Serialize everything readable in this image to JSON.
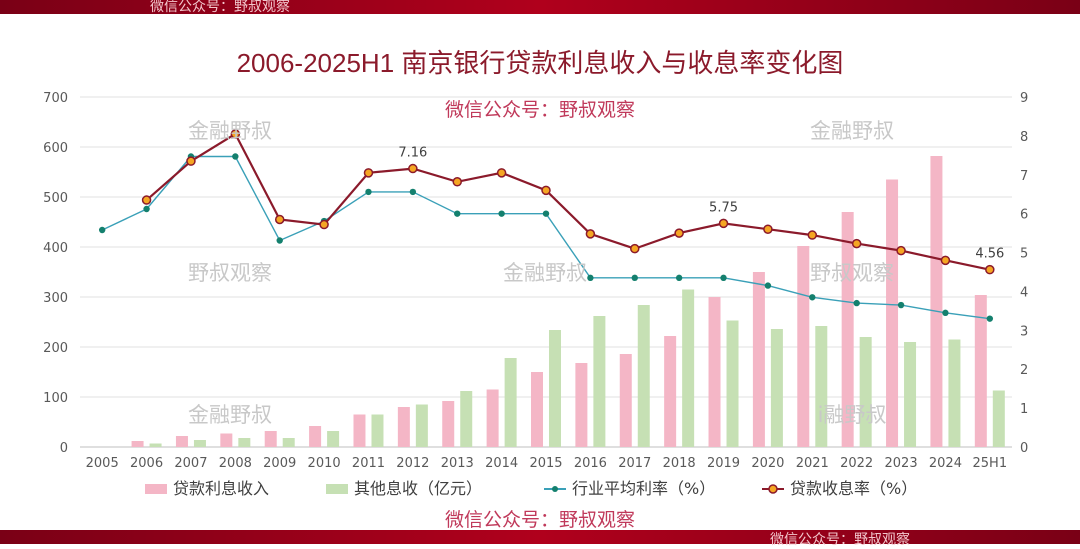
{
  "chart_data": {
    "type": "bar+line",
    "title": "2006-2025H1 南京银行贷款利息收入与收息率变化图",
    "categories": [
      "2005",
      "2006",
      "2007",
      "2008",
      "2009",
      "2010",
      "2011",
      "2012",
      "2013",
      "2014",
      "2015",
      "2016",
      "2017",
      "2018",
      "2019",
      "2020",
      "2021",
      "2022",
      "2023",
      "2024",
      "25H1"
    ],
    "y_left": {
      "ticks": [
        "0",
        "100",
        "200",
        "300",
        "400",
        "500",
        "600",
        "700"
      ],
      "ylim": [
        0,
        700
      ]
    },
    "y_right": {
      "ticks": [
        "0",
        "1",
        "2",
        "3",
        "4",
        "5",
        "6",
        "7",
        "8",
        "9"
      ],
      "ylim": [
        0,
        9
      ]
    },
    "series": [
      {
        "name": "贷款利息收入",
        "type": "bar",
        "axis": "left",
        "color": "#f4b6c6",
        "values": [
          0,
          12,
          22,
          27,
          32,
          42,
          65,
          80,
          92,
          115,
          150,
          168,
          186,
          222,
          300,
          350,
          402,
          470,
          535,
          582,
          304
        ]
      },
      {
        "name": "其他息收（亿元）",
        "type": "bar",
        "axis": "left",
        "color": "#c6e0b4",
        "values": [
          0,
          7,
          14,
          18,
          18,
          32,
          65,
          85,
          112,
          178,
          234,
          262,
          284,
          315,
          253,
          236,
          242,
          220,
          210,
          215,
          113
        ]
      },
      {
        "name": "行业平均利率（%）",
        "type": "line",
        "axis": "right",
        "color": "#3aa0b8",
        "marker": "#14806e",
        "values": [
          5.58,
          6.12,
          7.47,
          7.47,
          5.31,
          5.81,
          6.56,
          6.56,
          6.0,
          6.0,
          6.0,
          4.35,
          4.35,
          4.35,
          4.35,
          4.15,
          3.85,
          3.7,
          3.65,
          3.45,
          3.3
        ]
      },
      {
        "name": "贷款收息率（%）",
        "type": "line",
        "axis": "right",
        "color": "#8b1a2b",
        "marker": "#f5a623",
        "values": [
          null,
          6.35,
          7.35,
          8.05,
          5.85,
          5.72,
          7.05,
          7.16,
          6.82,
          7.05,
          6.6,
          5.48,
          5.1,
          5.5,
          5.75,
          5.6,
          5.45,
          5.23,
          5.05,
          4.8,
          4.56
        ]
      }
    ],
    "data_labels": [
      {
        "series": "贷款收息率（%）",
        "category": "2012",
        "text": "7.16"
      },
      {
        "series": "贷款收息率（%）",
        "category": "2019",
        "text": "5.75"
      },
      {
        "series": "贷款收息率（%）",
        "category": "25H1",
        "text": "4.56"
      }
    ],
    "legend_position": "bottom",
    "grid": true
  },
  "watermarks": {
    "account": "微信公众号：野叔观察",
    "brand": "金融野叔",
    "brand2": "野叔观察",
    "partial1": "野叔观察",
    "partial2": "i融野叔"
  },
  "colors": {
    "title": "#8b1a2b",
    "bar_accent": "#b0001c",
    "axis_text": "#595959",
    "grid": "#e0e0e0",
    "watermark_red": "#c0395a",
    "watermark_gray": "#c8c8c8"
  }
}
